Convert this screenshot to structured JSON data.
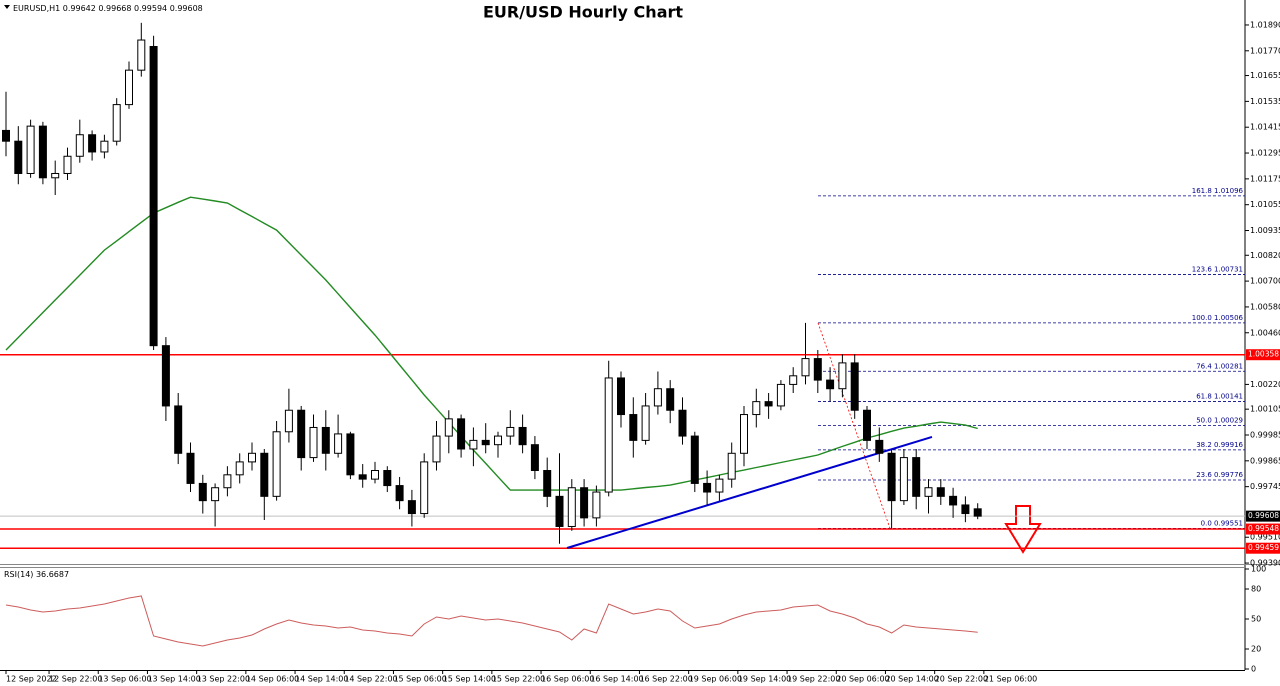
{
  "chart_data": {
    "type": "candlestick",
    "title": "EUR/USD Hourly Chart",
    "symbol": "EURUSD,H1",
    "up_color": "#ffffff",
    "down_color": "#000000",
    "open": [
      1.014,
      1.0135,
      1.012,
      1.0142,
      1.0118,
      1.012,
      1.0128,
      1.0138,
      1.013,
      1.0135,
      1.0152,
      1.0168,
      1.0179,
      1.004,
      1.0012,
      0.999,
      0.9976,
      0.9968,
      0.9974,
      0.998,
      0.9986,
      0.999,
      0.997,
      1.0,
      1.001,
      0.9988,
      1.0002,
      0.999,
      0.9999,
      0.998,
      0.9978,
      0.9982,
      0.9975,
      0.9968,
      0.9962,
      0.9986,
      0.9998,
      1.0006,
      0.9992,
      0.9996,
      0.9994,
      0.9998,
      1.0002,
      0.9994,
      0.9982,
      0.997,
      0.9956,
      0.9974,
      0.996,
      0.9972,
      1.0025,
      1.0008,
      0.9996,
      1.0012,
      1.002,
      1.001,
      0.9998,
      0.9976,
      0.9972,
      0.9978,
      0.999,
      1.0008,
      1.0014,
      1.0012,
      1.0022,
      1.0026,
      1.0034,
      1.0024,
      1.002,
      1.0032,
      1.001,
      0.9996,
      0.999,
      0.9968,
      0.9988,
      0.997,
      0.9974,
      0.997,
      0.9966,
      0.99642
    ],
    "high": [
      1.0158,
      1.0142,
      1.0145,
      1.0144,
      1.0126,
      1.0132,
      1.0145,
      1.014,
      1.0138,
      1.0155,
      1.0172,
      1.019,
      1.0184,
      1.0044,
      1.0018,
      0.9995,
      0.998,
      0.9976,
      0.9984,
      0.999,
      0.9995,
      0.9992,
      1.0005,
      1.002,
      1.0012,
      1.0008,
      1.001,
      1.0008,
      1.0,
      0.9985,
      0.9986,
      0.9984,
      0.9979,
      0.9973,
      0.999,
      1.0005,
      1.001,
      1.0008,
      1.0002,
      1.0004,
      1.0,
      1.001,
      1.0008,
      0.9998,
      0.9988,
      0.999,
      0.9978,
      0.9978,
      0.9975,
      1.0033,
      1.0028,
      1.0016,
      1.0018,
      1.0028,
      1.0024,
      1.0016,
      1.0,
      0.9982,
      0.998,
      0.9995,
      1.0012,
      1.002,
      1.0018,
      1.0024,
      1.003,
      1.00506,
      1.0038,
      1.003,
      1.0036,
      1.0036,
      1.0012,
      1.0002,
      0.9992,
      0.9992,
      0.9992,
      0.9978,
      0.9978,
      0.9974,
      0.997,
      0.99668
    ],
    "low": [
      1.0128,
      1.0115,
      1.0118,
      1.0115,
      1.011,
      1.0117,
      1.0125,
      1.0126,
      1.0127,
      1.0133,
      1.015,
      1.0165,
      1.0038,
      1.0005,
      0.9985,
      0.9972,
      0.9962,
      0.9956,
      0.997,
      0.9976,
      0.9982,
      0.9959,
      0.9968,
      0.9995,
      0.9982,
      0.9986,
      0.9982,
      0.9988,
      0.9978,
      0.9974,
      0.9976,
      0.9972,
      0.9964,
      0.9956,
      0.996,
      0.9982,
      0.999,
      0.9988,
      0.9984,
      0.999,
      0.9988,
      0.9994,
      0.999,
      0.9978,
      0.9965,
      0.9948,
      0.9954,
      0.9956,
      0.9956,
      0.997,
      1.0002,
      0.9988,
      0.9994,
      1.0008,
      1.0004,
      0.9994,
      0.9972,
      0.9966,
      0.9968,
      0.9974,
      0.9984,
      1.0002,
      1.0006,
      1.001,
      1.0018,
      1.0022,
      1.0018,
      1.0014,
      1.0016,
      1.0006,
      0.9992,
      0.9986,
      0.99551,
      0.9966,
      0.9964,
      0.9962,
      0.9966,
      0.996,
      0.9958,
      0.99594
    ],
    "close": [
      1.0135,
      1.012,
      1.0142,
      1.0118,
      1.012,
      1.0128,
      1.0138,
      1.013,
      1.0135,
      1.0152,
      1.0168,
      1.0182,
      1.004,
      1.0012,
      0.999,
      0.9976,
      0.9968,
      0.9974,
      0.998,
      0.9986,
      0.999,
      0.997,
      1.0,
      1.001,
      0.9988,
      1.0002,
      0.999,
      0.9999,
      0.998,
      0.9978,
      0.9982,
      0.9975,
      0.9968,
      0.9962,
      0.9986,
      0.9998,
      1.0006,
      0.9992,
      0.9996,
      0.9994,
      0.9998,
      1.0002,
      0.9994,
      0.9982,
      0.997,
      0.9956,
      0.9974,
      0.996,
      0.9972,
      1.0025,
      1.0008,
      0.9996,
      1.0012,
      1.002,
      1.001,
      0.9998,
      0.9976,
      0.9972,
      0.9978,
      0.999,
      1.0008,
      1.0014,
      1.0012,
      1.0022,
      1.0026,
      1.0034,
      1.0024,
      1.002,
      1.0032,
      1.001,
      0.9996,
      0.999,
      0.9968,
      0.9988,
      0.997,
      0.9974,
      0.997,
      0.9966,
      0.9962,
      0.99608
    ],
    "ma": {
      "color": "#228b22",
      "values": [
        1.0038,
        1.00438,
        1.00496,
        1.00554,
        1.00612,
        1.0067,
        1.00728,
        1.00786,
        1.00844,
        1.00887,
        1.0093,
        1.00973,
        1.01016,
        1.01041,
        1.01066,
        1.0109,
        1.01081,
        1.01072,
        1.01063,
        1.01031,
        1.01,
        1.00968,
        1.00937,
        1.00879,
        1.00821,
        1.00763,
        1.00705,
        1.00641,
        1.00577,
        1.00513,
        1.00449,
        1.0038,
        1.0031,
        1.00241,
        1.00171,
        1.00107,
        1.00043,
        0.99979,
        0.99915,
        0.99853,
        0.99791,
        0.99729,
        0.99729,
        0.99729,
        0.99729,
        0.99729,
        0.99729,
        0.99729,
        0.99729,
        0.99729,
        0.99729,
        0.99735,
        0.99741,
        0.99746,
        0.99752,
        0.99764,
        0.99776,
        0.99787,
        0.99799,
        0.99811,
        0.99822,
        0.99834,
        0.99845,
        0.99857,
        0.99869,
        0.9988,
        0.99892,
        0.99912,
        0.99932,
        0.99951,
        0.99971,
        0.99986,
        1.00002,
        1.00017,
        1.00026,
        1.00036,
        1.00045,
        1.00038,
        1.00031,
        1.00015
      ]
    },
    "ylim": [
      0.99381,
      1.02006
    ],
    "yticks": [
      {
        "value": 1.0189,
        "label": "1.01890"
      },
      {
        "value": 1.0177,
        "label": "1.01770"
      },
      1.01655,
      1.01535,
      1.01415,
      1.01295,
      1.01175,
      1.01055,
      1.00935,
      {
        "value": 1.0082,
        "label": "1.00820"
      },
      {
        "value": 1.007,
        "label": "1.00700"
      },
      {
        "value": 1.0058,
        "label": "1.00580"
      },
      {
        "value": 1.0046,
        "label": "1.00460"
      },
      {
        "value": 1.0022,
        "label": "1.00220"
      },
      1.00105,
      0.99985,
      0.99865,
      0.99745,
      {
        "value": 0.9951,
        "label": "0.99510"
      },
      {
        "value": 0.9939,
        "label": "0.99390"
      }
    ],
    "xticks": [
      {
        "value": 0,
        "label": "12 Sep 2022"
      },
      {
        "value": 3.5,
        "label": "12 Sep 22:00"
      },
      {
        "value": 7.5,
        "label": "13 Sep 06:00"
      },
      {
        "value": 11.5,
        "label": "13 Sep 14:00"
      },
      {
        "value": 15.5,
        "label": "13 Sep 22:00"
      },
      {
        "value": 19.5,
        "label": "14 Sep 06:00"
      },
      {
        "value": 23.5,
        "label": "14 Sep 14:00"
      },
      {
        "value": 27.5,
        "label": "14 Sep 22:00"
      },
      {
        "value": 31.5,
        "label": "15 Sep 06:00"
      },
      {
        "value": 35.5,
        "label": "15 Sep 14:00"
      },
      {
        "value": 39.5,
        "label": "15 Sep 22:00"
      },
      {
        "value": 43.5,
        "label": "16 Sep 06:00"
      },
      {
        "value": 47.5,
        "label": "16 Sep 14:00"
      },
      {
        "value": 51.5,
        "label": "16 Sep 22:00"
      },
      {
        "value": 55.5,
        "label": "19 Sep 06:00"
      },
      {
        "value": 59.5,
        "label": "19 Sep 14:00"
      },
      {
        "value": 63.5,
        "label": "19 Sep 22:00"
      },
      {
        "value": 67.5,
        "label": "20 Sep 06:00"
      },
      {
        "value": 71.5,
        "label": "20 Sep 14:00"
      },
      {
        "value": 75.5,
        "label": "20 Sep 22:00"
      },
      {
        "value": 79.5,
        "label": "21 Sep 06:00"
      }
    ],
    "levels": [
      {
        "value": 1.00358,
        "color": "#ff0000"
      },
      {
        "value": 0.99548,
        "color": "#ff0000"
      },
      {
        "value": 0.99459,
        "color": "#ff0000"
      }
    ],
    "current_color": "#000000",
    "trendline": {
      "color": "#0000cd",
      "values": [
        0.9946,
        0.99976
      ]
    },
    "fibonacci": {
      "color": "#00008b",
      "levels": [
        {
          "ratio": 161.8,
          "price": 1.01096
        },
        {
          "ratio": 123.6,
          "price": 1.00731
        },
        {
          "ratio": {
            "value": 100,
            "label": "100.0"
          },
          "price": 1.00506
        },
        {
          "ratio": 76.4,
          "price": 1.00281
        },
        {
          "ratio": 61.8,
          "price": 1.00141
        },
        {
          "ratio": {
            "value": 50,
            "label": "50.0"
          },
          "price": 1.00029
        },
        {
          "ratio": 38.2,
          "price": 0.99916
        },
        {
          "ratio": 23.6,
          "price": 0.99776
        },
        {
          "ratio": {
            "value": 0,
            "label": "0.0"
          },
          "price": 0.99551
        }
      ]
    },
    "rsi": {
      "name": "RSI(14)",
      "color": "#cd5c5c",
      "ylim": [
        0,
        100
      ],
      "yticks": [
        0,
        20,
        50,
        80,
        100
      ],
      "values": [
        64,
        62,
        59,
        57,
        58,
        60,
        61,
        63,
        65,
        68,
        71,
        73,
        33,
        30,
        27,
        25,
        23,
        26,
        29,
        31,
        34,
        40,
        45,
        49,
        46,
        44,
        43,
        41,
        42,
        39,
        38,
        36,
        35,
        33,
        45,
        52,
        50,
        53,
        51,
        49,
        50,
        48,
        46,
        43,
        40,
        37,
        29,
        40,
        36,
        65,
        60,
        55,
        57,
        60,
        58,
        48,
        41,
        43,
        45,
        50,
        54,
        57,
        58,
        59,
        62,
        63,
        64,
        58,
        55,
        51,
        45,
        42,
        36,
        44,
        42,
        41,
        40,
        39,
        38,
        36.6687
      ]
    }
  }
}
